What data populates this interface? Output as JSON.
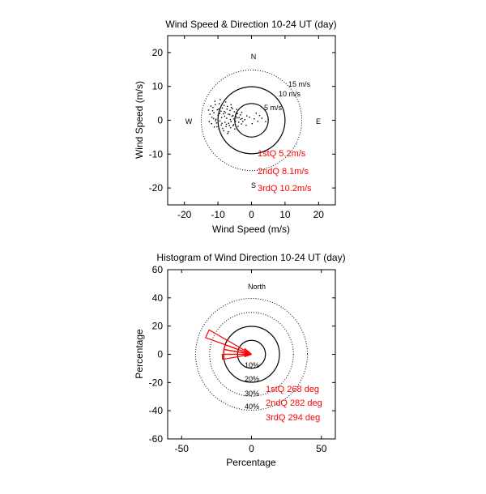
{
  "colors": {
    "annotation": "#ff0000",
    "rose": "#ff0000",
    "axes": "#000000",
    "scatter": "#000000"
  },
  "chart_data": [
    {
      "type": "scatter",
      "title": "Wind Speed & Direction 10-24 UT (day)",
      "xlabel": "Wind Speed (m/s)",
      "ylabel": "Wind Speed (m/s)",
      "xlim": [
        -25,
        25
      ],
      "ylim": [
        -25,
        25
      ],
      "xticks": [
        "-20",
        "-10",
        "0",
        "10",
        "20"
      ],
      "yticks": [
        "20",
        "10",
        "0",
        "-10",
        "-20"
      ],
      "xtick_values": [
        -20,
        -10,
        0,
        10,
        20
      ],
      "ytick_values": [
        20,
        10,
        0,
        -10,
        -20
      ],
      "grid": false,
      "compass": {
        "n": "N",
        "s": "S",
        "e": "E",
        "w": "W"
      },
      "rings": [
        {
          "r": 5,
          "label": "5 m/s",
          "style": "solid"
        },
        {
          "r": 10,
          "label": "10 m/s",
          "style": "solid"
        },
        {
          "r": 15,
          "label": "15 m/s",
          "style": "dotted"
        }
      ],
      "annotations": [
        "1stQ 5.2m/s",
        "2ndQ 8.1m/s",
        "3rdQ 10.2m/s"
      ],
      "points": [
        [
          -12.1,
          4.2
        ],
        [
          -11.5,
          3.8
        ],
        [
          -10.8,
          4.6
        ],
        [
          -10.2,
          3.1
        ],
        [
          -9.6,
          4.9
        ],
        [
          -9.1,
          2.7
        ],
        [
          -8.7,
          3.6
        ],
        [
          -8.2,
          4.4
        ],
        [
          -7.8,
          2.2
        ],
        [
          -7.3,
          3.3
        ],
        [
          -6.9,
          1.8
        ],
        [
          -6.4,
          2.9
        ],
        [
          -6.0,
          3.8
        ],
        [
          -5.5,
          1.4
        ],
        [
          -5.1,
          2.5
        ],
        [
          -4.6,
          1.1
        ],
        [
          -4.2,
          2.0
        ],
        [
          -3.7,
          0.8
        ],
        [
          -3.3,
          1.6
        ],
        [
          -2.8,
          0.5
        ],
        [
          -12.4,
          1.8
        ],
        [
          -11.8,
          0.9
        ],
        [
          -11.2,
          2.2
        ],
        [
          -10.6,
          0.3
        ],
        [
          -10.0,
          1.5
        ],
        [
          -9.4,
          -0.2
        ],
        [
          -8.9,
          0.8
        ],
        [
          -8.4,
          1.9
        ],
        [
          -7.9,
          -0.6
        ],
        [
          -7.4,
          0.6
        ],
        [
          -6.8,
          -0.9
        ],
        [
          -6.3,
          0.2
        ],
        [
          -5.8,
          1.2
        ],
        [
          -5.3,
          -1.3
        ],
        [
          -4.8,
          -0.3
        ],
        [
          -4.3,
          0.7
        ],
        [
          -3.8,
          -0.6
        ],
        [
          -3.2,
          0.3
        ],
        [
          -2.6,
          -0.4
        ],
        [
          -2.0,
          0.2
        ],
        [
          -11.9,
          -1.0
        ],
        [
          -11.1,
          -2.0
        ],
        [
          -10.4,
          -0.8
        ],
        [
          -9.7,
          -2.6
        ],
        [
          -9.0,
          -1.4
        ],
        [
          -8.3,
          -3.1
        ],
        [
          -7.6,
          -1.9
        ],
        [
          -6.9,
          -3.4
        ],
        [
          -6.2,
          -2.2
        ],
        [
          -5.5,
          -1.6
        ],
        [
          -10.9,
          5.6
        ],
        [
          -9.3,
          6.1
        ],
        [
          -7.7,
          5.4
        ],
        [
          -6.1,
          4.6
        ],
        [
          -12.8,
          3.0
        ],
        [
          -12.6,
          -0.4
        ],
        [
          -8.6,
          -2.4
        ],
        [
          -7.1,
          -3.9
        ],
        [
          -5.0,
          -2.6
        ],
        [
          -4.4,
          3.2
        ],
        [
          -2.9,
          2.3
        ],
        [
          -1.4,
          1.3
        ],
        [
          -0.6,
          0.9
        ],
        [
          0.8,
          0.4
        ],
        [
          1.9,
          -0.3
        ],
        [
          3.1,
          0.6
        ],
        [
          4.2,
          -0.4
        ],
        [
          2.4,
          1.4
        ],
        [
          -1.6,
          -1.5
        ],
        [
          0.2,
          -1.0
        ],
        [
          1.4,
          2.1
        ],
        [
          -9.8,
          3.3
        ],
        [
          -8.0,
          1.2
        ],
        [
          -6.6,
          -1.6
        ],
        [
          -11.3,
          0.5
        ],
        [
          -10.3,
          -1.9
        ],
        [
          -7.2,
          4.1
        ],
        [
          -5.7,
          3.4
        ],
        [
          -4.0,
          -1.8
        ],
        [
          -3.0,
          -1.1
        ],
        [
          -9.5,
          2.0
        ],
        [
          -8.8,
          -0.9
        ],
        [
          -6.5,
          1.7
        ],
        [
          -5.2,
          0.4
        ],
        [
          -4.5,
          1.9
        ],
        [
          -11.6,
          2.8
        ],
        [
          -10.7,
          -0.1
        ],
        [
          -8.1,
          2.6
        ],
        [
          -7.5,
          -1.2
        ],
        [
          -6.1,
          -0.4
        ]
      ]
    },
    {
      "type": "rose",
      "title": "Histogram of Wind Direction 10-24 UT (day)",
      "xlabel": "Percentage",
      "ylabel": "Percentage",
      "xlim": [
        -60,
        60
      ],
      "ylim": [
        -60,
        60
      ],
      "xticks": [
        "-50",
        "0",
        "50"
      ],
      "yticks": [
        "60",
        "40",
        "20",
        "0",
        "-20",
        "-40",
        "-60"
      ],
      "xtick_values": [
        -50,
        0,
        50
      ],
      "ytick_values": [
        60,
        40,
        20,
        0,
        -20,
        -40,
        -60
      ],
      "grid": false,
      "compass": {
        "n": "North"
      },
      "rings": [
        {
          "r": 10,
          "label": "10%",
          "style": "solid"
        },
        {
          "r": 20,
          "label": "20%",
          "style": "solid"
        },
        {
          "r": 30,
          "label": "30%",
          "style": "dotted"
        },
        {
          "r": 40,
          "label": "40%",
          "style": "dotted"
        }
      ],
      "annotations": [
        "1stQ 268 deg",
        "2ndQ 282 deg",
        "3rdQ 294 deg"
      ],
      "bins": [
        {
          "from_deg": 250,
          "to_deg": 260,
          "percent": 5
        },
        {
          "from_deg": 260,
          "to_deg": 270,
          "percent": 21
        },
        {
          "from_deg": 270,
          "to_deg": 280,
          "percent": 20
        },
        {
          "from_deg": 280,
          "to_deg": 290,
          "percent": 20
        },
        {
          "from_deg": 290,
          "to_deg": 300,
          "percent": 35
        },
        {
          "from_deg": 300,
          "to_deg": 310,
          "percent": 6
        }
      ]
    }
  ]
}
